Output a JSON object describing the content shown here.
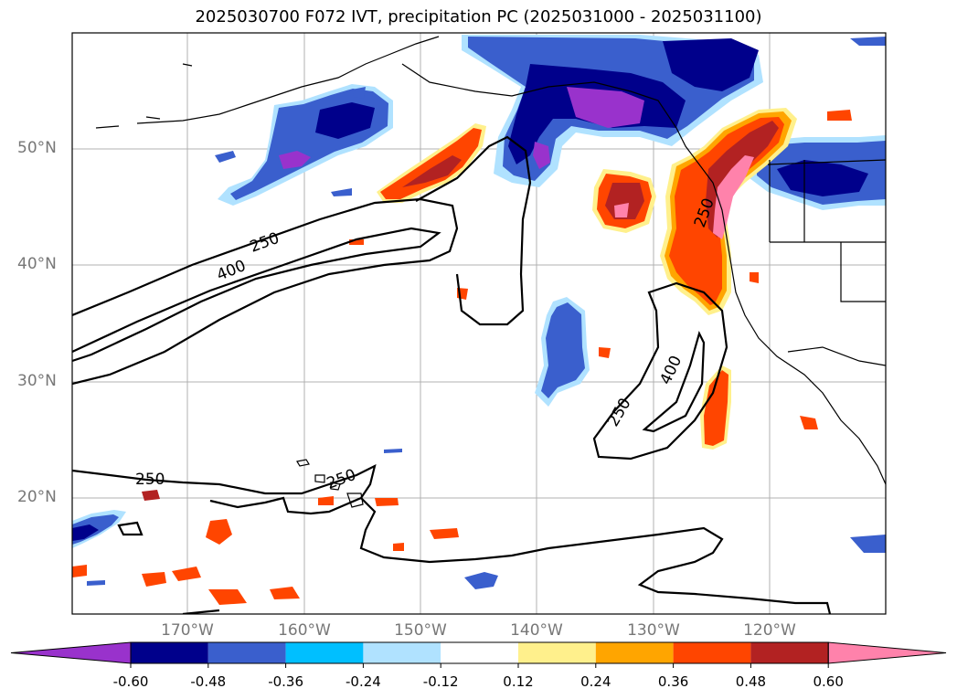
{
  "title": "2025030700 F072 IVT, precipitation PC (2025031000 - 2025031100)",
  "axes": {
    "lon_labels": [
      "170°W",
      "160°W",
      "150°W",
      "140°W",
      "130°W",
      "120°W"
    ],
    "lat_labels": [
      "50°N",
      "40°N",
      "30°N",
      "20°N"
    ]
  },
  "ivt_contour_labels": [
    "250",
    "400",
    "250",
    "400",
    "250",
    "250",
    "250"
  ],
  "colorbar": {
    "ticks": [
      "-0.60",
      "-0.48",
      "-0.36",
      "-0.24",
      "-0.12",
      "0.12",
      "0.24",
      "0.36",
      "0.48",
      "0.60"
    ],
    "colors": [
      "#9932cc",
      "#00008b",
      "#3a5fcd",
      "#00bfff",
      "#b0e2ff",
      "#ffffff",
      "#fff08c",
      "#ffa500",
      "#ff4500",
      "#b22222",
      "#ff82ab"
    ]
  }
}
